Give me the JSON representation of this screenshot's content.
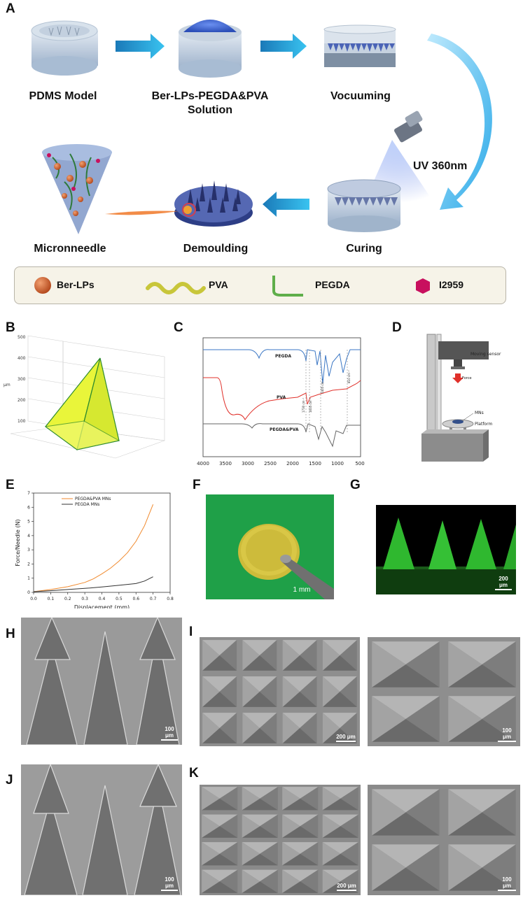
{
  "panels": {
    "A": "A",
    "B": "B",
    "C": "C",
    "D": "D",
    "E": "E",
    "F": "F",
    "G": "G",
    "H": "H",
    "I": "I",
    "J": "J",
    "K": "K"
  },
  "schematic": {
    "steps": {
      "pdms": "PDMS Model",
      "solution": "Ber-LPs-PEGDA&PVA\nSolution",
      "vacuum": "Vocuuming",
      "uv": "UV 360nm",
      "curing": "Curing",
      "demoulding": "Demoulding",
      "microneedle": "Micronneedle"
    },
    "legend": [
      {
        "label": "Ber-LPs",
        "icon": "sphere-icon",
        "color": "#d2642a"
      },
      {
        "label": "PVA",
        "icon": "wave-icon",
        "color": "#c8c63a"
      },
      {
        "label": "PEGDA",
        "icon": "l-curve-icon",
        "color": "#5fae4a"
      },
      {
        "label": "I2959",
        "icon": "hexagon-icon",
        "color": "#c8105e"
      }
    ]
  },
  "panel_b": {
    "z_ticks": [
      "500",
      "400",
      "300",
      "200",
      "100"
    ],
    "z_unit": "μm"
  },
  "panel_c": {
    "x_ticks": [
      "4000",
      "3500",
      "3000",
      "2500",
      "2000",
      "1500",
      "1000",
      "500"
    ],
    "series": [
      {
        "name": "PEGDA",
        "color": "#3a76c4"
      },
      {
        "name": "PVA",
        "color": "#e0302a"
      },
      {
        "name": "PEGDA&PVA",
        "color": "#555555"
      }
    ],
    "peaks": [
      "1730 cm⁻¹",
      "1635 cm⁻¹",
      "1405 cm⁻¹",
      "810 cm⁻¹"
    ]
  },
  "panel_d": {
    "moving_sensor": "Moving sensor",
    "force": "Force",
    "mns": "MNs",
    "platform": "Platform"
  },
  "chart_data": {
    "type": "line",
    "xlabel": "Displacement (mm)",
    "ylabel": "Force/Needle (N)",
    "xlim": [
      0.0,
      0.8
    ],
    "ylim": [
      0,
      7
    ],
    "x_ticks": [
      "0.0",
      "0.1",
      "0.2",
      "0.3",
      "0.4",
      "0.5",
      "0.6",
      "0.7",
      "0.8"
    ],
    "y_ticks": [
      "0",
      "1",
      "2",
      "3",
      "4",
      "5",
      "6",
      "7"
    ],
    "legend_position": "top-left",
    "series": [
      {
        "name": "PEGDA&PVA MNs",
        "color": "#f08a2e",
        "x": [
          0.0,
          0.1,
          0.2,
          0.3,
          0.35,
          0.4,
          0.45,
          0.5,
          0.55,
          0.6,
          0.65,
          0.7
        ],
        "y": [
          0.05,
          0.2,
          0.4,
          0.7,
          0.95,
          1.3,
          1.7,
          2.2,
          2.8,
          3.6,
          4.7,
          6.2
        ]
      },
      {
        "name": "PEGDA MNs",
        "color": "#333333",
        "x": [
          0.0,
          0.1,
          0.2,
          0.3,
          0.4,
          0.5,
          0.6,
          0.65,
          0.7
        ],
        "y": [
          0.05,
          0.12,
          0.2,
          0.28,
          0.38,
          0.5,
          0.62,
          0.8,
          1.1
        ]
      }
    ]
  },
  "scale_bars": {
    "f": "1 mm",
    "g": "200 μm",
    "h": "100 μm",
    "i1": "200 μm",
    "i2": "100 μm",
    "j": "100 μm",
    "k1": "200 μm",
    "k2": "100 μm"
  }
}
